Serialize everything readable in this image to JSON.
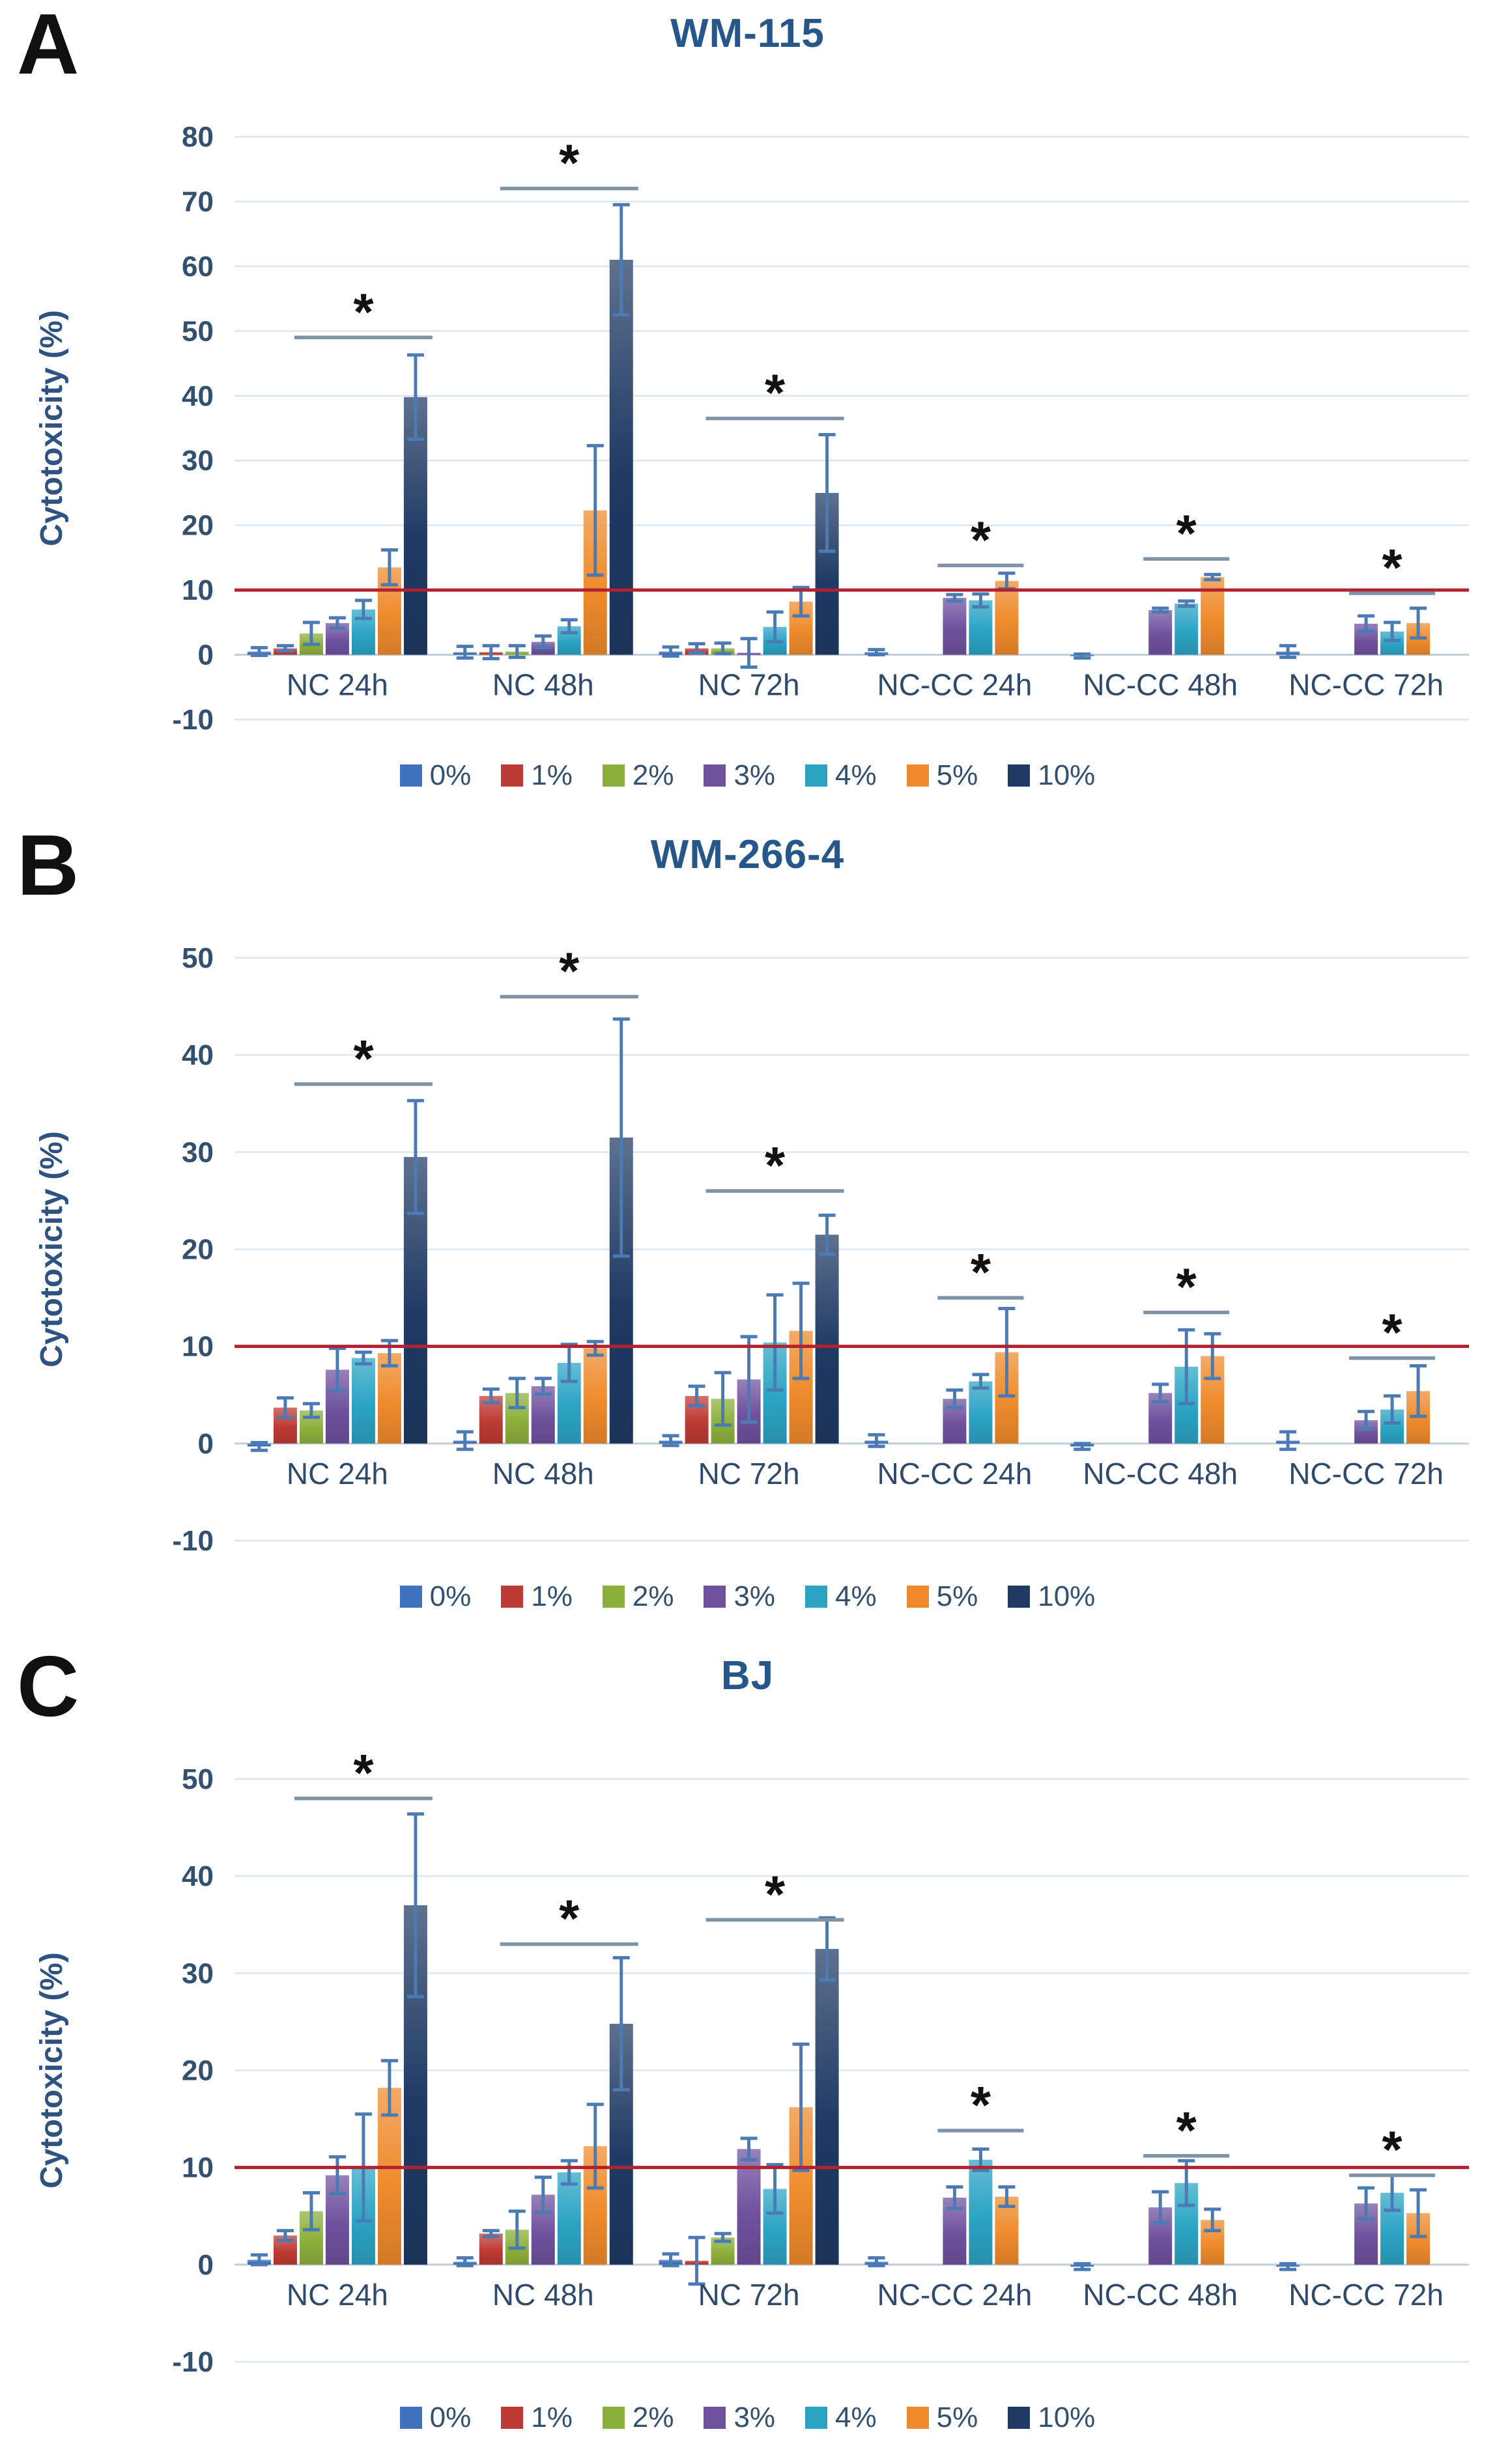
{
  "ylabel": "Cytotoxicity (%)",
  "sig_symbol": "*",
  "legend": {
    "labels": [
      "0%",
      "1%",
      "2%",
      "3%",
      "4%",
      "5%",
      "10%"
    ],
    "colors": [
      "#3F73BE",
      "#BE3A34",
      "#8CB03C",
      "#6F519E",
      "#2BA4C4",
      "#EF8B2C",
      "#1F3A64"
    ]
  },
  "style_colors": {
    "threshold_line": "#B22230",
    "error_bar": "#4A7BB5",
    "sig_bracket": "#7E93A6",
    "gridline": "#DCE6F2",
    "zero_line": "#C2CDD8",
    "tick_text": "#33506E",
    "category_text": "#2F4A6B",
    "title_text": "#25578B",
    "axis_label_text": "#2F5380"
  },
  "chart_data": [
    {
      "type": "bar",
      "letter": "A",
      "title": "WM-115",
      "ylim": [
        -10,
        80
      ],
      "ystep": 10,
      "threshold": 10,
      "grid": true,
      "legend_position": "bottom",
      "categories": [
        "NC 24h",
        "NC 48h",
        "NC 72h",
        "NC-CC 24h",
        "NC-CC 48h",
        "NC-CC 72h"
      ],
      "series": [
        {
          "name": "0%",
          "values": [
            0.5,
            0.4,
            0.5,
            0.4,
            -0.2,
            0.5
          ],
          "errors": [
            0.6,
            0.9,
            0.7,
            0.4,
            0.3,
            0.9
          ]
        },
        {
          "name": "1%",
          "values": [
            1.0,
            0.4,
            1.0,
            0,
            0,
            0
          ],
          "errors": [
            0.4,
            1.0,
            0.7,
            0,
            0,
            0
          ]
        },
        {
          "name": "2%",
          "values": [
            3.3,
            0.5,
            1.0,
            0,
            0,
            0
          ],
          "errors": [
            1.7,
            0.9,
            0.8,
            0,
            0,
            0
          ]
        },
        {
          "name": "3%",
          "values": [
            4.9,
            2.0,
            0.3,
            8.8,
            6.9,
            4.8
          ],
          "errors": [
            0.8,
            0.9,
            2.2,
            0.5,
            0.3,
            1.2
          ]
        },
        {
          "name": "4%",
          "values": [
            7.0,
            4.4,
            4.3,
            8.4,
            7.9,
            3.6
          ],
          "errors": [
            1.4,
            1.0,
            2.3,
            1.0,
            0.4,
            1.4
          ]
        },
        {
          "name": "5%",
          "values": [
            13.5,
            22.3,
            8.2,
            11.4,
            12.0,
            4.9
          ],
          "errors": [
            2.7,
            10.0,
            2.2,
            1.2,
            0.4,
            2.3
          ]
        },
        {
          "name": "10%",
          "values": [
            39.8,
            61.0,
            25.0,
            0,
            0,
            0
          ],
          "errors": [
            6.5,
            8.5,
            9.0,
            0,
            0,
            0
          ]
        }
      ],
      "significance": [
        {
          "group": 0,
          "y": 49
        },
        {
          "group": 1,
          "y": 72
        },
        {
          "group": 2,
          "y": 36.5
        },
        {
          "group": 3,
          "y": 13.8
        },
        {
          "group": 4,
          "y": 14.8
        },
        {
          "group": 5,
          "y": 9.5
        }
      ]
    },
    {
      "type": "bar",
      "letter": "B",
      "title": "WM-266-4",
      "ylim": [
        -10,
        50
      ],
      "ystep": 10,
      "threshold": 10,
      "grid": true,
      "legend_position": "bottom",
      "categories": [
        "NC 24h",
        "NC 48h",
        "NC 72h",
        "NC-CC 24h",
        "NC-CC 48h",
        "NC-CC 72h"
      ],
      "series": [
        {
          "name": "0%",
          "values": [
            -0.3,
            0.3,
            0.3,
            0.3,
            -0.3,
            0.3
          ],
          "errors": [
            0.4,
            0.9,
            0.5,
            0.6,
            0.3,
            0.9
          ]
        },
        {
          "name": "1%",
          "values": [
            3.7,
            4.9,
            4.9,
            0,
            0,
            0
          ],
          "errors": [
            1.0,
            0.7,
            1.0,
            0,
            0,
            0
          ]
        },
        {
          "name": "2%",
          "values": [
            3.4,
            5.2,
            4.6,
            0,
            0,
            0
          ],
          "errors": [
            0.7,
            1.5,
            2.7,
            0,
            0,
            0
          ]
        },
        {
          "name": "3%",
          "values": [
            7.6,
            5.9,
            6.6,
            4.6,
            5.2,
            2.4
          ],
          "errors": [
            2.2,
            0.8,
            4.4,
            0.9,
            0.9,
            0.9
          ]
        },
        {
          "name": "4%",
          "values": [
            8.8,
            8.3,
            10.4,
            6.4,
            7.9,
            3.5
          ],
          "errors": [
            0.6,
            1.9,
            4.9,
            0.7,
            3.8,
            1.4
          ]
        },
        {
          "name": "5%",
          "values": [
            9.3,
            9.8,
            11.6,
            9.4,
            9.0,
            5.4
          ],
          "errors": [
            1.3,
            0.7,
            4.9,
            4.5,
            2.3,
            2.6
          ]
        },
        {
          "name": "10%",
          "values": [
            29.5,
            31.5,
            21.5,
            0,
            0,
            0
          ],
          "errors": [
            5.8,
            12.2,
            2.0,
            0,
            0,
            0
          ]
        }
      ],
      "significance": [
        {
          "group": 0,
          "y": 37
        },
        {
          "group": 1,
          "y": 46
        },
        {
          "group": 2,
          "y": 26
        },
        {
          "group": 3,
          "y": 15
        },
        {
          "group": 4,
          "y": 13.5
        },
        {
          "group": 5,
          "y": 8.8
        }
      ]
    },
    {
      "type": "bar",
      "letter": "C",
      "title": "BJ",
      "ylim": [
        -10,
        50
      ],
      "ystep": 10,
      "threshold": 10,
      "grid": true,
      "legend_position": "bottom",
      "categories": [
        "NC 24h",
        "NC 48h",
        "NC 72h",
        "NC-CC 24h",
        "NC-CC 48h",
        "NC-CC 72h"
      ],
      "series": [
        {
          "name": "0%",
          "values": [
            0.5,
            0.3,
            0.5,
            0.3,
            -0.2,
            -0.2
          ],
          "errors": [
            0.5,
            0.4,
            0.6,
            0.4,
            0.3,
            0.3
          ]
        },
        {
          "name": "1%",
          "values": [
            3.0,
            3.2,
            0.4,
            0,
            0,
            0
          ],
          "errors": [
            0.5,
            0.3,
            2.4,
            0,
            0,
            0
          ]
        },
        {
          "name": "2%",
          "values": [
            5.5,
            3.6,
            2.8,
            0,
            0,
            0
          ],
          "errors": [
            1.9,
            1.9,
            0.4,
            0,
            0,
            0
          ]
        },
        {
          "name": "3%",
          "values": [
            9.2,
            7.2,
            11.9,
            6.9,
            5.9,
            6.3
          ],
          "errors": [
            1.9,
            1.8,
            1.1,
            1.1,
            1.6,
            1.6
          ]
        },
        {
          "name": "4%",
          "values": [
            10.0,
            9.5,
            7.8,
            10.8,
            8.4,
            7.4
          ],
          "errors": [
            5.5,
            1.2,
            2.5,
            1.1,
            2.3,
            1.8
          ]
        },
        {
          "name": "5%",
          "values": [
            18.2,
            12.2,
            16.2,
            7.0,
            4.6,
            5.3
          ],
          "errors": [
            2.8,
            4.3,
            6.5,
            1.0,
            1.1,
            2.4
          ]
        },
        {
          "name": "10%",
          "values": [
            37.0,
            24.8,
            32.5,
            0,
            0,
            0
          ],
          "errors": [
            9.4,
            6.8,
            3.2,
            0,
            0,
            0
          ]
        }
      ],
      "significance": [
        {
          "group": 0,
          "y": 48
        },
        {
          "group": 1,
          "y": 33
        },
        {
          "group": 2,
          "y": 35.5
        },
        {
          "group": 3,
          "y": 13.8
        },
        {
          "group": 4,
          "y": 11.2
        },
        {
          "group": 5,
          "y": 9.2
        }
      ]
    }
  ]
}
